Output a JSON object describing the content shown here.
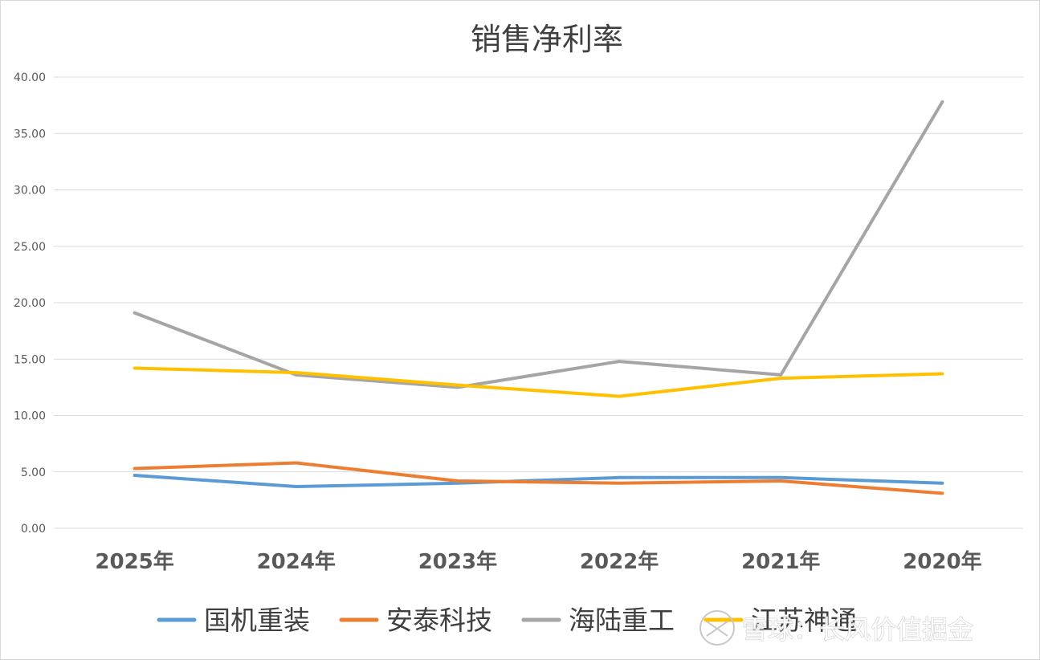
{
  "colors": {
    "grid": "#d9d9d9",
    "axis": "#d9d9d9"
  },
  "chart_data": {
    "type": "line",
    "title": "销售净利率",
    "xlabel": "",
    "ylabel": "",
    "ylim": [
      0,
      40
    ],
    "yticks": [
      "0.00",
      "5.00",
      "10.00",
      "15.00",
      "20.00",
      "25.00",
      "30.00",
      "35.00",
      "40.00"
    ],
    "categories": [
      "2025年",
      "2024年",
      "2023年",
      "2022年",
      "2021年",
      "2020年"
    ],
    "grid": true,
    "legend_position": "bottom",
    "series": [
      {
        "name": "国机重装",
        "color": "#5b9bd5",
        "values": [
          4.7,
          3.7,
          4.0,
          4.5,
          4.5,
          4.0
        ]
      },
      {
        "name": "安泰科技",
        "color": "#ed7d31",
        "values": [
          5.3,
          5.8,
          4.2,
          4.0,
          4.2,
          3.1
        ]
      },
      {
        "name": "海陆重工",
        "color": "#a5a5a5",
        "values": [
          19.1,
          13.6,
          12.5,
          14.8,
          13.6,
          37.8
        ]
      },
      {
        "name": "江苏神通",
        "color": "#ffc000",
        "values": [
          14.2,
          13.8,
          12.7,
          11.7,
          13.3,
          13.7
        ]
      }
    ]
  },
  "watermark": {
    "text": "雪球：长风价值掘金"
  }
}
